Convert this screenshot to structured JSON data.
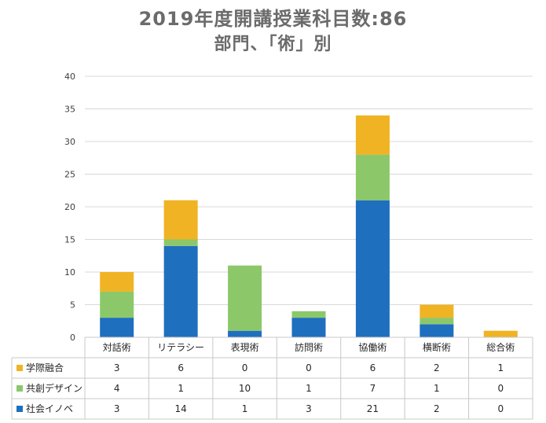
{
  "chart_data": {
    "type": "bar",
    "stacked": true,
    "title": "2019年度開講授業科目数:86",
    "subtitle": "部門、「術」別",
    "categories": [
      "対話術",
      "リテラシー",
      "表現術",
      "訪問術",
      "協働術",
      "横断術",
      "総合術"
    ],
    "series": [
      {
        "name": "社会イノベ",
        "color": "#1f6fbf",
        "values": [
          3,
          14,
          1,
          3,
          21,
          2,
          0
        ]
      },
      {
        "name": "共創デザイン",
        "color": "#8cc86a",
        "values": [
          4,
          1,
          10,
          1,
          7,
          1,
          0
        ]
      },
      {
        "name": "学際融合",
        "color": "#f0b323",
        "values": [
          3,
          6,
          0,
          0,
          6,
          2,
          1
        ]
      }
    ],
    "table_row_order": [
      "学際融合",
      "共創デザイン",
      "社会イノベ"
    ],
    "ylim": [
      0,
      40
    ],
    "yticks": [
      0,
      5,
      10,
      15,
      20,
      25,
      30,
      35,
      40
    ],
    "grid": true,
    "legend_placement": "data-table"
  }
}
